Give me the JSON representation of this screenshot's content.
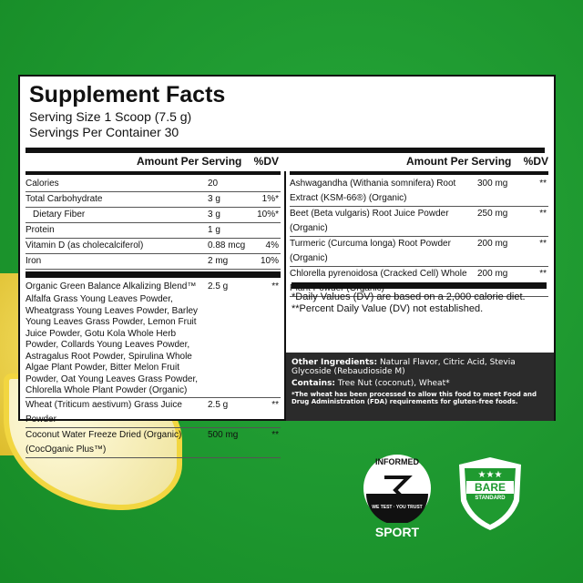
{
  "title": "Supplement Facts",
  "serving_size": "Serving Size 1 Scoop (7.5 g)",
  "servings_per_container": "Servings Per Container 30",
  "header": {
    "amount": "Amount Per Serving",
    "dv": "%DV"
  },
  "left_rows": [
    {
      "name": "Calories",
      "amount": "20",
      "dv": ""
    },
    {
      "name": "Total Carbohydrate",
      "amount": "3 g",
      "dv": "1%*"
    },
    {
      "name": "Dietary Fiber",
      "amount": "3 g",
      "dv": "10%*"
    },
    {
      "name": "Protein",
      "amount": "1 g",
      "dv": ""
    },
    {
      "name": "Vitamin D (as cholecalciferol)",
      "amount": "0.88 mcg",
      "dv": "4%"
    },
    {
      "name": "Iron",
      "amount": "2 mg",
      "dv": "10%"
    }
  ],
  "blend_rows": [
    {
      "name": "Organic Green Balance Alkalizing Blend™",
      "detail": "Alfalfa Grass Young Leaves Powder, Wheatgrass Young Leaves Powder, Barley Young Leaves Grass Powder, Lemon Fruit Juice Powder, Gotu Kola Whole Herb Powder, Collards Young Leaves Powder, Astragalus Root Powder, Spirulina Whole Algae Plant Powder, Bitter Melon Fruit Powder, Oat Young Leaves Grass Powder, Chlorella Whole Plant Powder (Organic)",
      "amount": "2.5 g",
      "dv": "**"
    },
    {
      "name": "Wheat (Triticum aestivum) Grass Juice Powder",
      "amount": "2.5 g",
      "dv": "**"
    },
    {
      "name": "Coconut Water Freeze Dried (Organic) (CocOganic Plus™)",
      "amount": "500 mg",
      "dv": "**"
    }
  ],
  "right_rows": [
    {
      "name": "Ashwagandha (Withania somnifera) Root Extract (KSM-66®) (Organic)",
      "amount": "300 mg",
      "dv": "**"
    },
    {
      "name": "Beet (Beta vulgaris) Root Juice Powder (Organic)",
      "amount": "250 mg",
      "dv": "**"
    },
    {
      "name": "Turmeric (Curcuma longa) Root Powder (Organic)",
      "amount": "200 mg",
      "dv": "**"
    },
    {
      "name": "Chlorella pyrenoidosa (Cracked Cell) Whole Plant Powder (Organic)",
      "amount": "200 mg",
      "dv": "**"
    }
  ],
  "footnotes": [
    "*Daily Values (DV) are based on a 2,000 calorie diet.",
    "**Percent Daily Value (DV) not established."
  ],
  "other": {
    "label": "Other Ingredients:",
    "text": " Natural Flavor, Citric Acid, Stevia Glycoside (Rebaudioside M)"
  },
  "contains": {
    "label": "Contains:",
    "text": " Tree Nut (coconut), Wheat*"
  },
  "wheat_note": "*The wheat has been processed to allow this food to meet Food and Drug Administration (FDA) requirements for gluten-free foods.",
  "badges": {
    "informed": {
      "top": "INFORMED",
      "ring": "WE TEST · YOU TRUST",
      "bottom": "SPORT"
    },
    "bare": {
      "title": "BARE",
      "sub": "STANDARD"
    }
  }
}
